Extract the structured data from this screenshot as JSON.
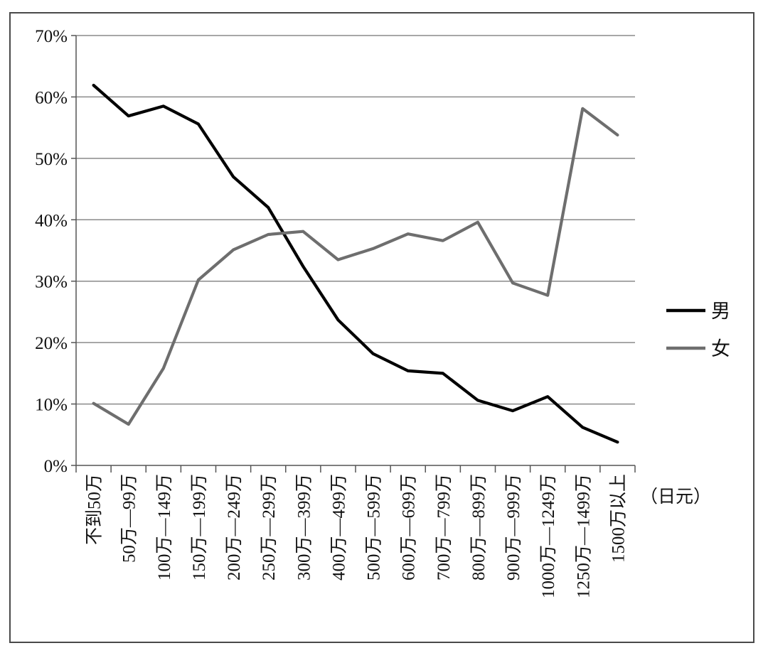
{
  "chart_data": {
    "type": "line",
    "categories": [
      "不到50万",
      "50万—99万",
      "100万—149万",
      "150万—199万",
      "200万—249万",
      "250万—299万",
      "300万—399万",
      "400万—499万",
      "500万—599万",
      "600万—699万",
      "700万—799万",
      "800万—899万",
      "900万—999万",
      "1000万—1249万",
      "1250万—1499万",
      "1500万以上"
    ],
    "unit_label": "（日元）",
    "ylim": [
      0,
      70
    ],
    "yticks": [
      0,
      10,
      20,
      30,
      40,
      50,
      60,
      70
    ],
    "ytick_labels": [
      "0%",
      "10%",
      "20%",
      "30%",
      "40%",
      "50%",
      "60%",
      "70%"
    ],
    "grid": "horizontal",
    "legend_position": "right",
    "series": [
      {
        "name": "男",
        "color": "#000000",
        "values": [
          61.9,
          56.9,
          58.5,
          55.6,
          47.0,
          42.0,
          32.4,
          23.7,
          18.2,
          15.4,
          15.0,
          10.6,
          8.9,
          11.2,
          6.2,
          3.8
        ]
      },
      {
        "name": "女",
        "color": "#6e6e6e",
        "values": [
          10.1,
          6.7,
          15.8,
          30.2,
          35.1,
          37.6,
          38.1,
          33.5,
          35.3,
          37.7,
          36.6,
          39.6,
          29.7,
          27.7,
          58.1,
          53.8
        ]
      }
    ]
  }
}
